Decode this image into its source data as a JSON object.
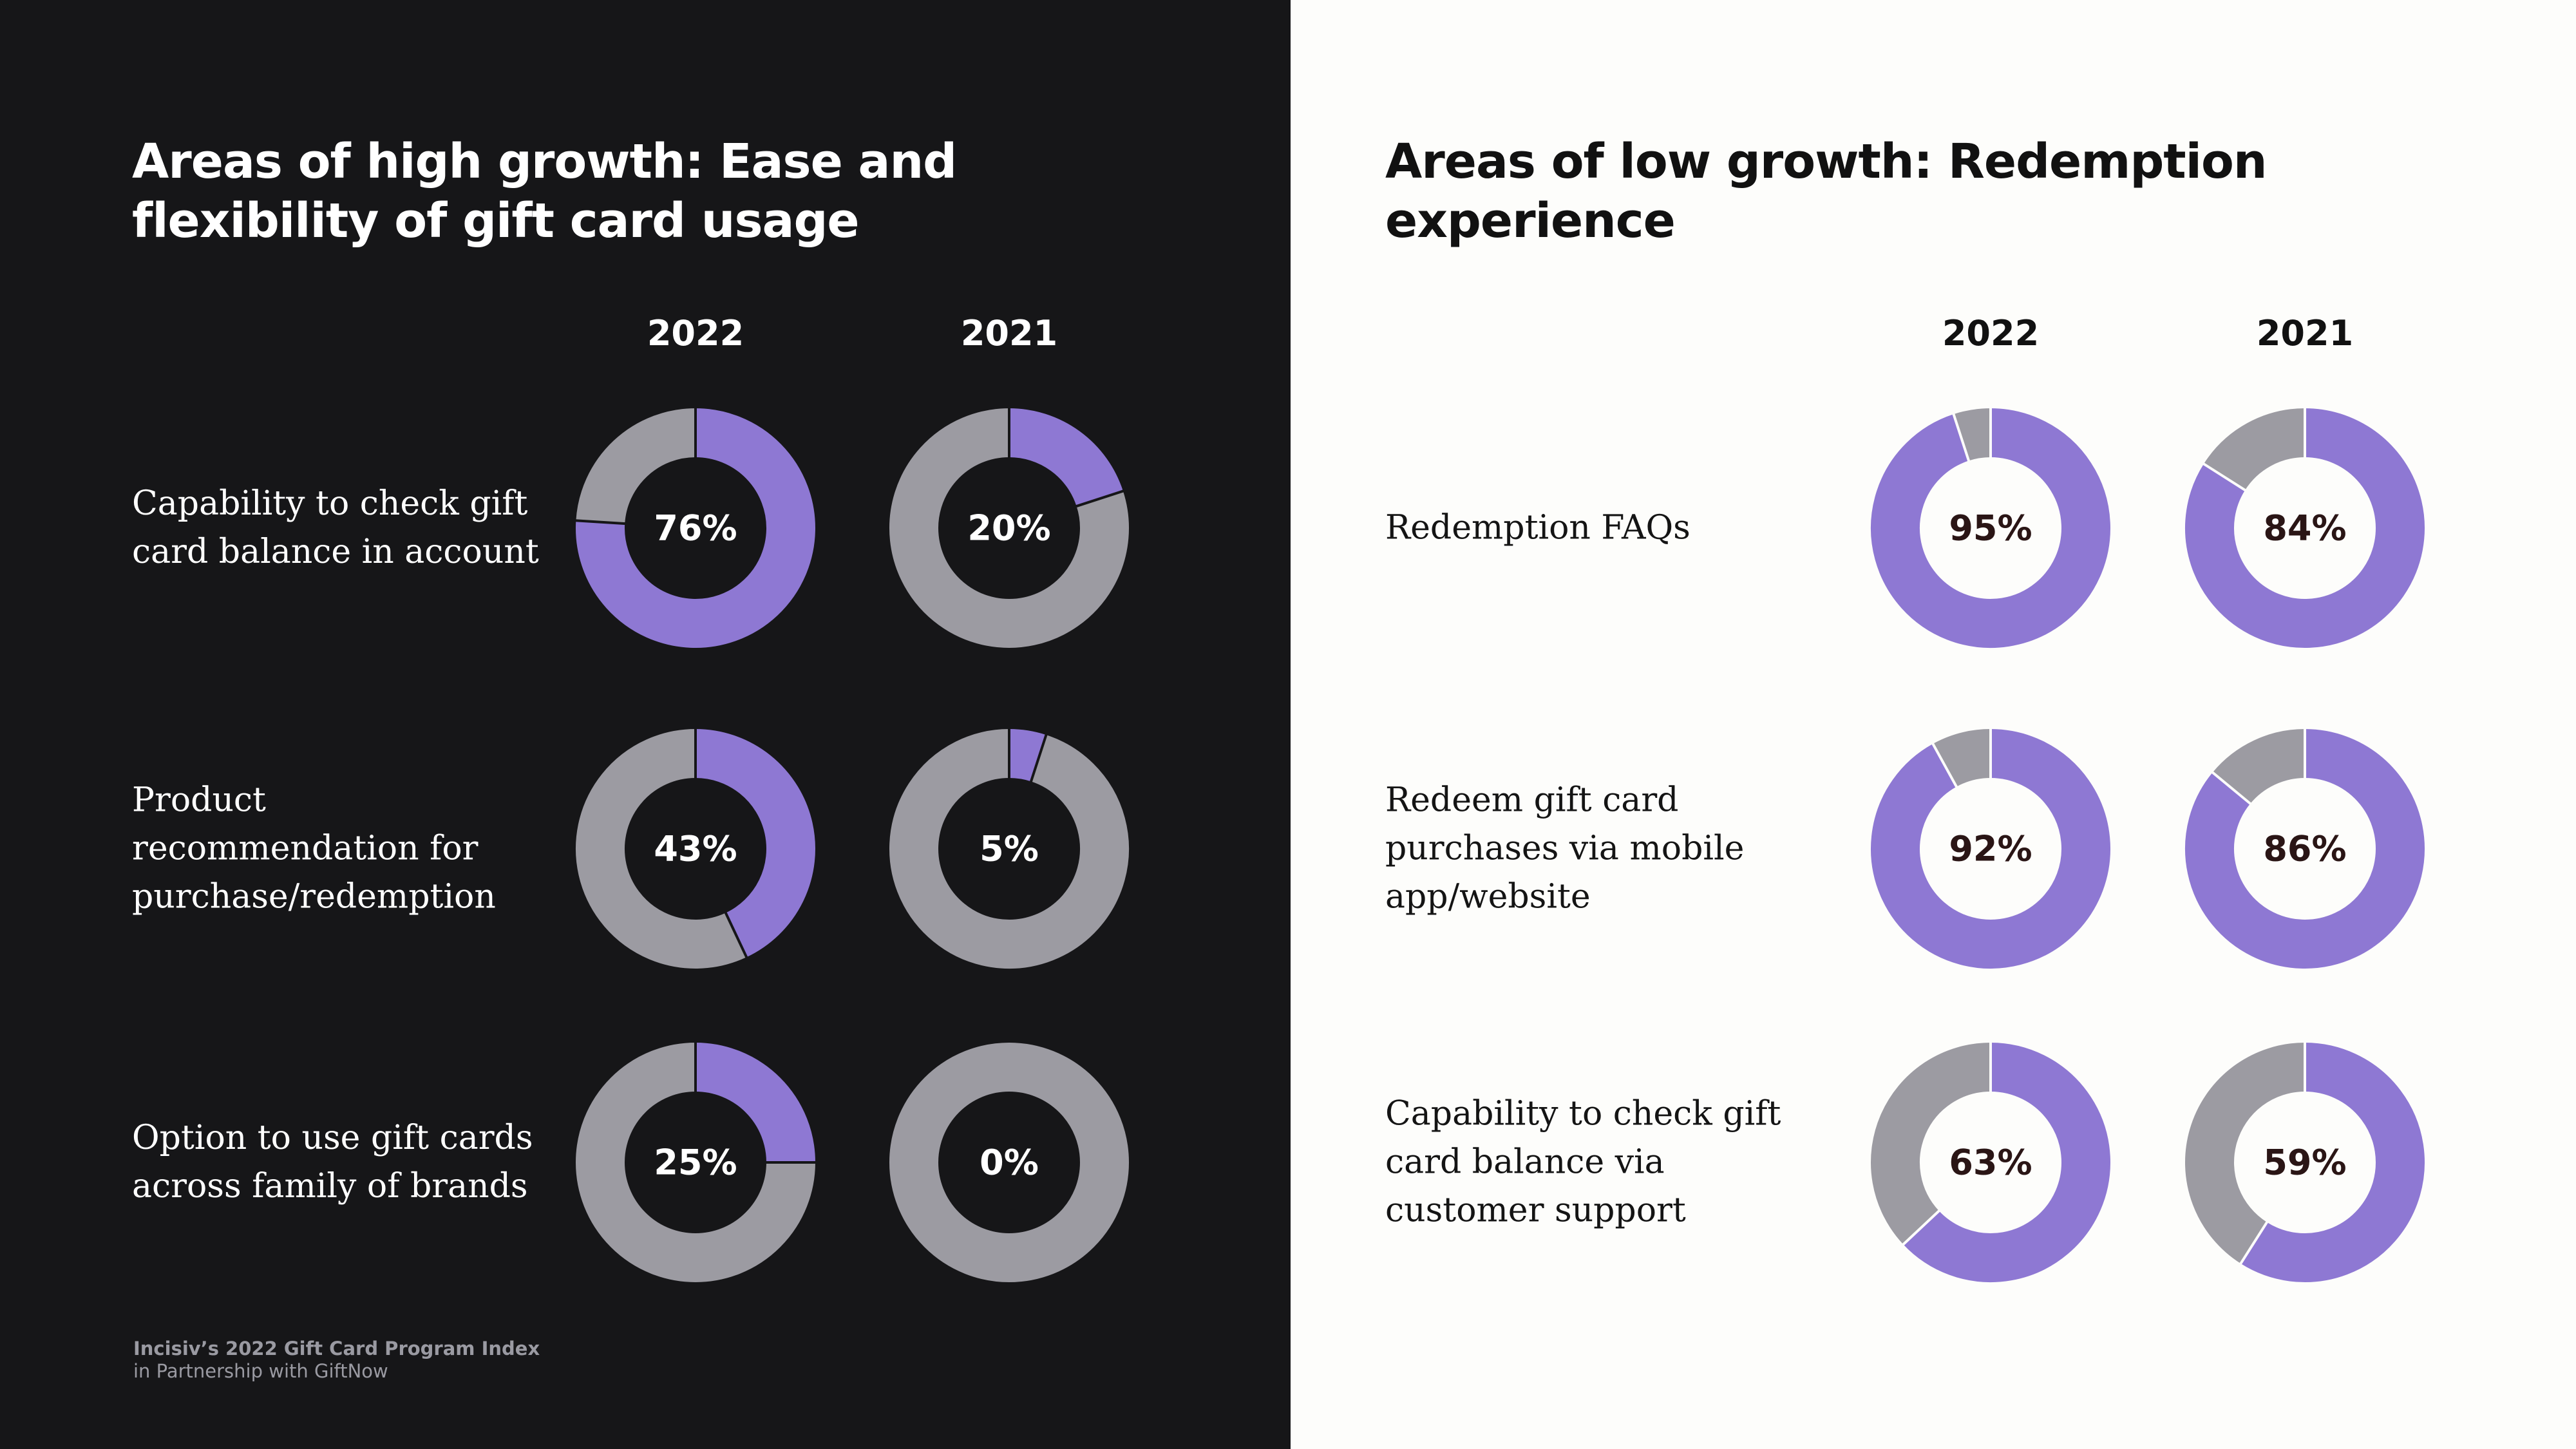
{
  "left": {
    "title": "Areas of high growth: Ease and flexibility of gift card usage",
    "years": [
      "2022",
      "2021"
    ],
    "rows": [
      {
        "label": "Capability to check gift card balance in account",
        "values": [
          "76%",
          "20%"
        ]
      },
      {
        "label": "Product recommendation for purchase/redemption",
        "values": [
          "43%",
          "5%"
        ]
      },
      {
        "label": "Option to use gift cards across family of brands",
        "values": [
          "25%",
          "0%"
        ]
      }
    ],
    "source_line1": "Incisiv’s 2022 Gift Card Program Index",
    "source_line2": "in Partnership with GiftNow"
  },
  "right": {
    "title": "Areas of low growth: Redemption experience",
    "years": [
      "2022",
      "2021"
    ],
    "rows": [
      {
        "label": "Redemption FAQs",
        "values": [
          "95%",
          "84%"
        ]
      },
      {
        "label": "Redeem gift card purchases via mobile app/website",
        "values": [
          "92%",
          "86%"
        ]
      },
      {
        "label": "Capability to check gift card balance via customer support",
        "values": [
          "63%",
          "59%"
        ]
      }
    ]
  },
  "colors": {
    "purple": "#8e78d3",
    "gray": "#9c9ba2",
    "left_background": "#161618",
    "right_background": "#fdfdfb",
    "left_center_text": "#ffffff",
    "right_center_text": "#2a1515"
  },
  "chart_data": [
    {
      "type": "pie",
      "title": "Areas of high growth: Ease and flexibility of gift card usage",
      "categories": [
        "Capability to check gift card balance in account",
        "Product recommendation for purchase/redemption",
        "Option to use gift cards across family of brands"
      ],
      "series": [
        {
          "name": "2022",
          "values": [
            76,
            43,
            25
          ]
        },
        {
          "name": "2021",
          "values": [
            20,
            5,
            0
          ]
        }
      ]
    },
    {
      "type": "pie",
      "title": "Areas of low growth: Redemption experience",
      "categories": [
        "Redemption FAQs",
        "Redeem gift card purchases via mobile app/website",
        "Capability to check gift card balance via customer support"
      ],
      "series": [
        {
          "name": "2022",
          "values": [
            95,
            92,
            63
          ]
        },
        {
          "name": "2021",
          "values": [
            84,
            86,
            59
          ]
        }
      ]
    }
  ]
}
